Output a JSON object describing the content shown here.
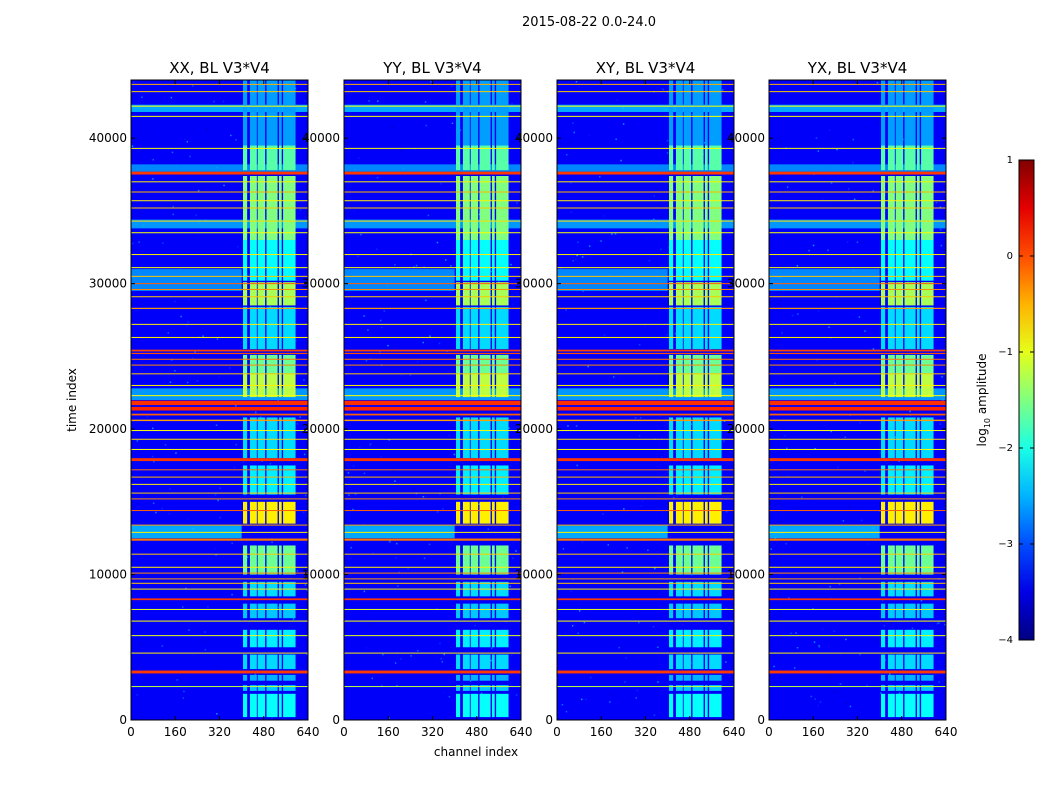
{
  "figure_title": "2015-08-22 0.0-24.0",
  "chart_data": {
    "type": "heatmap",
    "title": "2015-08-22 0.0-24.0",
    "xlabel": "channel index",
    "ylabel": "time index",
    "xlim": [
      0,
      640
    ],
    "ylim": [
      0,
      44000
    ],
    "x_ticks": [
      0,
      160,
      320,
      480,
      640
    ],
    "y_ticks": [
      0,
      10000,
      20000,
      30000,
      40000
    ],
    "x_tick_labels": [
      "0",
      "160",
      "320",
      "480",
      "640"
    ],
    "y_tick_labels": [
      "0",
      "10000",
      "20000",
      "30000",
      "40000"
    ],
    "panels": [
      {
        "title": "XX, BL V3*V4",
        "pol": "XX"
      },
      {
        "title": "YY, BL V3*V4",
        "pol": "YY"
      },
      {
        "title": "XY, BL V3*V4",
        "pol": "XY"
      },
      {
        "title": "YX, BL V3*V4",
        "pol": "YX"
      }
    ],
    "colorbar": {
      "label": "log10 amplitude",
      "label_main": "log",
      "label_sub": "10",
      "label_rest": " amplitude",
      "range": [
        -4,
        1
      ],
      "ticks": [
        1,
        0,
        -1,
        -2,
        -3,
        -4
      ],
      "tick_labels": [
        "1",
        "0",
        "−1",
        "−2",
        "−3",
        "−4"
      ],
      "colormap": "jet"
    },
    "background_log_amplitude": -3.4,
    "signal_channel_bands": [
      [
        405,
        420
      ],
      [
        430,
        455
      ],
      [
        458,
        485
      ],
      [
        490,
        530
      ],
      [
        535,
        545
      ],
      [
        550,
        595
      ]
    ],
    "signal_time_blocks": [
      {
        "t0": 200,
        "t1": 1800,
        "level": -2.1
      },
      {
        "t0": 2000,
        "t1": 2400,
        "level": -2.4
      },
      {
        "t0": 2700,
        "t1": 3100,
        "level": -2.5
      },
      {
        "t0": 3500,
        "t1": 4500,
        "level": -2.3
      },
      {
        "t0": 5000,
        "t1": 6200,
        "level": -2.2
      },
      {
        "t0": 7000,
        "t1": 8000,
        "level": -2.4
      },
      {
        "t0": 8500,
        "t1": 9500,
        "level": -2.3
      },
      {
        "t0": 10000,
        "t1": 12000,
        "level": -1.6
      },
      {
        "t0": 13500,
        "t1": 15000,
        "level": -0.8
      },
      {
        "t0": 15500,
        "t1": 17500,
        "level": -2.2
      },
      {
        "t0": 18000,
        "t1": 20800,
        "level": -2.3
      },
      {
        "t0": 22200,
        "t1": 23800,
        "level": -1.2
      },
      {
        "t0": 23800,
        "t1": 25100,
        "level": -1.6
      },
      {
        "t0": 25500,
        "t1": 28400,
        "level": -2.3
      },
      {
        "t0": 28500,
        "t1": 30100,
        "level": -1.3
      },
      {
        "t0": 30200,
        "t1": 33000,
        "level": -2.1
      },
      {
        "t0": 33000,
        "t1": 37400,
        "level": -1.5
      },
      {
        "t0": 37800,
        "t1": 39500,
        "level": -1.7
      },
      {
        "t0": 39500,
        "t1": 44000,
        "level": -2.6
      }
    ],
    "flagged_rows": [
      {
        "t": 3300,
        "level": 0.1,
        "h": 200
      },
      {
        "t": 2300,
        "level": -1.2,
        "h": 60
      },
      {
        "t": 4600,
        "level": -0.8,
        "h": 60
      },
      {
        "t": 5800,
        "level": -1.0,
        "h": 50
      },
      {
        "t": 6800,
        "level": -0.9,
        "h": 60
      },
      {
        "t": 7600,
        "level": -1.0,
        "h": 50
      },
      {
        "t": 8300,
        "level": 0.1,
        "h": 120
      },
      {
        "t": 9000,
        "level": -0.8,
        "h": 60
      },
      {
        "t": 9400,
        "level": -0.6,
        "h": 50
      },
      {
        "t": 9700,
        "level": -0.4,
        "h": 50
      },
      {
        "t": 10100,
        "level": -0.3,
        "h": 60
      },
      {
        "t": 10500,
        "level": -0.8,
        "h": 50
      },
      {
        "t": 11400,
        "level": -0.6,
        "h": 50
      },
      {
        "t": 12400,
        "level": -0.2,
        "h": 150
      },
      {
        "t": 12900,
        "level": -0.8,
        "h": 60
      },
      {
        "t": 13400,
        "level": -0.4,
        "h": 60
      },
      {
        "t": 14400,
        "level": -0.1,
        "h": 60
      },
      {
        "t": 15200,
        "level": -0.3,
        "h": 60
      },
      {
        "t": 15600,
        "level": -0.6,
        "h": 60
      },
      {
        "t": 16200,
        "level": -0.8,
        "h": 50
      },
      {
        "t": 16700,
        "level": -0.5,
        "h": 60
      },
      {
        "t": 17200,
        "level": -0.2,
        "h": 60
      },
      {
        "t": 17900,
        "level": 0.1,
        "h": 200
      },
      {
        "t": 18600,
        "level": -0.9,
        "h": 50
      },
      {
        "t": 19300,
        "level": -0.7,
        "h": 60
      },
      {
        "t": 19900,
        "level": -0.9,
        "h": 50
      },
      {
        "t": 20600,
        "level": -0.4,
        "h": 100
      },
      {
        "t": 21000,
        "level": -0.1,
        "h": 120
      },
      {
        "t": 21400,
        "level": 0.2,
        "h": 250
      },
      {
        "t": 21800,
        "level": 0.15,
        "h": 300
      },
      {
        "t": 22300,
        "level": -0.9,
        "h": 50
      },
      {
        "t": 23000,
        "level": -0.8,
        "h": 50
      },
      {
        "t": 23800,
        "level": -0.6,
        "h": 50
      },
      {
        "t": 24400,
        "level": -0.3,
        "h": 60
      },
      {
        "t": 24800,
        "level": -0.2,
        "h": 60
      },
      {
        "t": 25200,
        "level": 0.0,
        "h": 80
      },
      {
        "t": 25400,
        "level": 0.05,
        "h": 120
      },
      {
        "t": 26300,
        "level": -0.8,
        "h": 50
      },
      {
        "t": 27200,
        "level": -0.8,
        "h": 50
      },
      {
        "t": 28300,
        "level": -0.4,
        "h": 80
      },
      {
        "t": 29100,
        "level": -0.6,
        "h": 60
      },
      {
        "t": 29600,
        "level": -0.3,
        "h": 60
      },
      {
        "t": 30000,
        "level": -0.1,
        "h": 60
      },
      {
        "t": 30500,
        "level": -0.6,
        "h": 60
      },
      {
        "t": 31100,
        "level": -0.9,
        "h": 50
      },
      {
        "t": 32000,
        "level": -0.8,
        "h": 50
      },
      {
        "t": 33500,
        "level": -0.9,
        "h": 50
      },
      {
        "t": 34300,
        "level": -0.7,
        "h": 50
      },
      {
        "t": 35200,
        "level": -0.6,
        "h": 50
      },
      {
        "t": 35700,
        "level": -0.8,
        "h": 50
      },
      {
        "t": 36300,
        "level": -0.5,
        "h": 60
      },
      {
        "t": 37000,
        "level": -0.8,
        "h": 50
      },
      {
        "t": 37600,
        "level": 0.1,
        "h": 200
      },
      {
        "t": 39300,
        "level": -0.9,
        "h": 60
      },
      {
        "t": 41500,
        "level": -0.9,
        "h": 50
      },
      {
        "t": 42200,
        "level": -0.9,
        "h": 60
      },
      {
        "t": 43200,
        "level": -0.6,
        "h": 60
      },
      {
        "t": 43700,
        "level": -0.5,
        "h": 50
      }
    ],
    "rfi_time_bands": [
      {
        "t0": 12500,
        "t1": 13400,
        "level": -2.4,
        "ch0": 0,
        "ch1": 400
      },
      {
        "t0": 22000,
        "t1": 22800,
        "level": -2.5,
        "ch0": 0,
        "ch1": 640
      },
      {
        "t0": 29500,
        "t1": 31000,
        "level": -2.6,
        "ch0": 0,
        "ch1": 400
      },
      {
        "t0": 33800,
        "t1": 34400,
        "level": -2.5,
        "ch0": 0,
        "ch1": 640
      },
      {
        "t0": 37700,
        "t1": 38200,
        "level": -2.6,
        "ch0": 0,
        "ch1": 640
      },
      {
        "t0": 41800,
        "t1": 42300,
        "level": -2.4,
        "ch0": 0,
        "ch1": 640
      }
    ]
  }
}
